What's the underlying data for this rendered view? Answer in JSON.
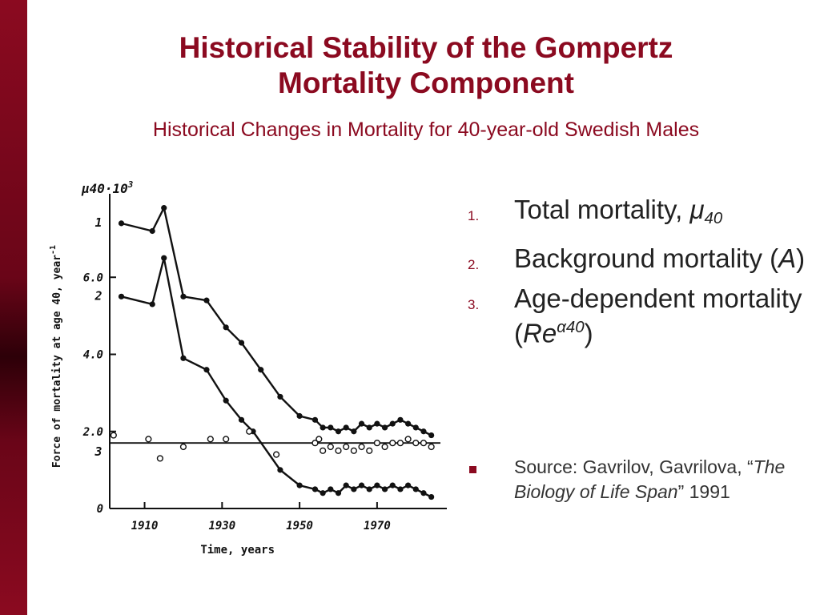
{
  "slide": {
    "title_line1": "Historical Stability of the Gompertz",
    "title_line2": "Mortality Component",
    "subtitle": "Historical Changes in Mortality for 40-year-old Swedish Males",
    "accent_color": "#8b0a20"
  },
  "list": {
    "items": [
      {
        "num": "1.",
        "text": "Total mortality, ",
        "sym": "μ",
        "sub": "40"
      },
      {
        "num": "2.",
        "text": "Background mortality (",
        "sym": "A",
        "after": ")"
      },
      {
        "num": "3.",
        "text": "Age-dependent mortality (",
        "sym": "Re",
        "sup": "α40",
        "after": ")"
      }
    ],
    "source": {
      "prefix": "Source: Gavrilov, Gavrilova, “",
      "book": "The Biology of Life Span",
      "suffix": "” 1991"
    }
  },
  "chart_data": {
    "type": "line",
    "ylabel_top": "μ40·10",
    "ylabel_exp": "3",
    "ylabel": "Force of mortality at age 40, year",
    "ylabel_exp2": "-1",
    "xlabel": "Time, years",
    "xlim": [
      1901,
      1988
    ],
    "ylim": [
      0,
      8
    ],
    "x_ticks": [
      1910,
      1930,
      1950,
      1970
    ],
    "y_ticks": [
      {
        "v": 0,
        "label": "0"
      },
      {
        "v": 2,
        "label": "2.0"
      },
      {
        "v": 4,
        "label": "4.0"
      },
      {
        "v": 6,
        "label": "6.0"
      }
    ],
    "series": [
      {
        "name": "1",
        "marker": "filled",
        "x": [
          1904,
          1912,
          1915,
          1920,
          1926,
          1931,
          1935,
          1940,
          1945,
          1950,
          1954,
          1956,
          1958,
          1960,
          1962,
          1964,
          1966,
          1968,
          1970,
          1972,
          1974,
          1976,
          1978,
          1980,
          1982,
          1984
        ],
        "y": [
          7.4,
          7.2,
          7.8,
          5.5,
          5.4,
          4.7,
          4.3,
          3.6,
          2.9,
          2.4,
          2.3,
          2.1,
          2.1,
          2.0,
          2.1,
          2.0,
          2.2,
          2.1,
          2.2,
          2.1,
          2.2,
          2.3,
          2.2,
          2.1,
          2.0,
          1.9
        ]
      },
      {
        "name": "2",
        "marker": "filled",
        "x": [
          1904,
          1912,
          1915,
          1920,
          1926,
          1931,
          1935,
          1938,
          1945,
          1950,
          1954,
          1956,
          1958,
          1960,
          1962,
          1964,
          1966,
          1968,
          1970,
          1972,
          1974,
          1976,
          1978,
          1980,
          1982,
          1984
        ],
        "y": [
          5.5,
          5.3,
          6.5,
          3.9,
          3.6,
          2.8,
          2.3,
          2.0,
          1.0,
          0.6,
          0.5,
          0.4,
          0.5,
          0.4,
          0.6,
          0.5,
          0.6,
          0.5,
          0.6,
          0.5,
          0.6,
          0.5,
          0.6,
          0.5,
          0.4,
          0.3
        ]
      },
      {
        "name": "3",
        "marker": "open",
        "x": [
          1902,
          1911,
          1914,
          1920,
          1927,
          1931,
          1937,
          1944,
          1954,
          1955,
          1956,
          1958,
          1960,
          1962,
          1964,
          1966,
          1968,
          1970,
          1972,
          1974,
          1976,
          1978,
          1980,
          1982,
          1984
        ],
        "y": [
          1.9,
          1.8,
          1.3,
          1.6,
          1.8,
          1.8,
          2.0,
          1.4,
          1.7,
          1.8,
          1.5,
          1.6,
          1.5,
          1.6,
          1.5,
          1.6,
          1.5,
          1.7,
          1.6,
          1.7,
          1.7,
          1.8,
          1.7,
          1.7,
          1.6
        ]
      }
    ],
    "trend_line": {
      "series": "3",
      "y": 1.7
    }
  }
}
